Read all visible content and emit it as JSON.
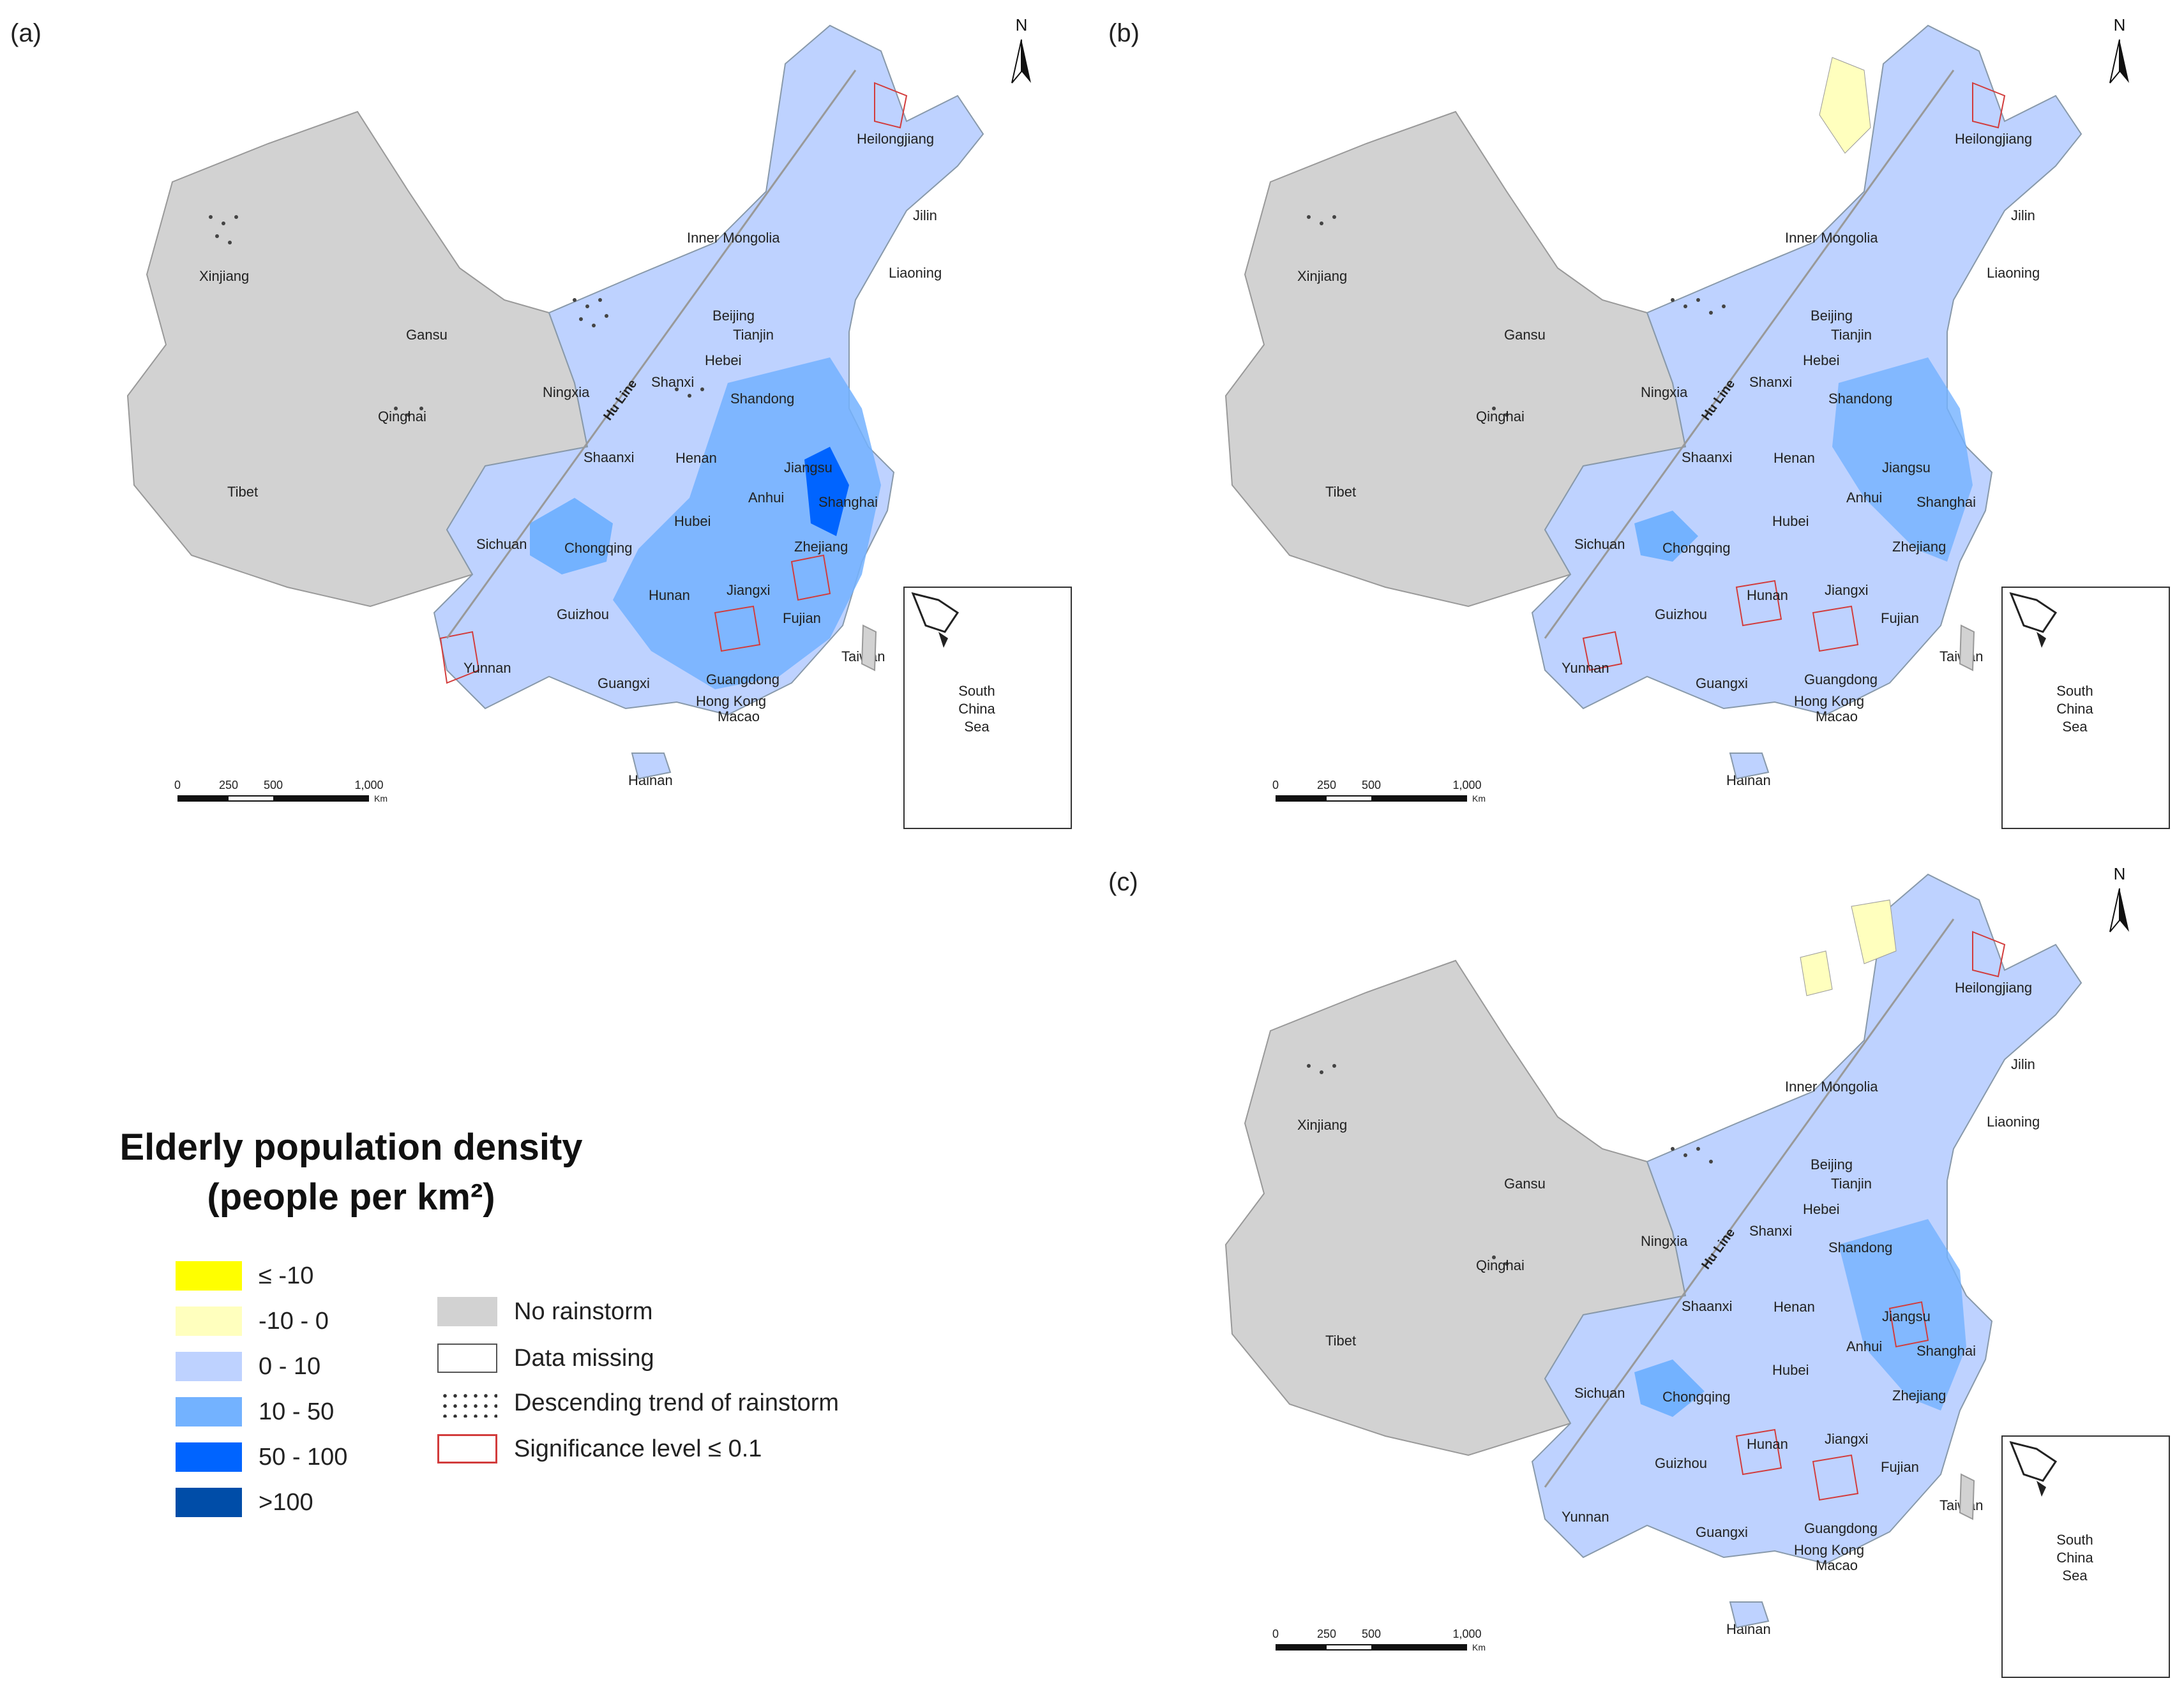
{
  "panels": [
    {
      "id": "a",
      "label": "(a)"
    },
    {
      "id": "b",
      "label": "(b)"
    },
    {
      "id": "c",
      "label": "(c)"
    }
  ],
  "map": {
    "north_label": "N",
    "hu_line_label": "Hu Line",
    "inset_labels": [
      "South",
      "China",
      "Sea"
    ],
    "scale_labels": [
      "0",
      "250",
      "500",
      "1,000"
    ],
    "scale_unit": "Km",
    "provinces": [
      "Heilongjiang",
      "Jilin",
      "Liaoning",
      "Inner Mongolia",
      "Xinjiang",
      "Beijing",
      "Tianjin",
      "Hebei",
      "Gansu",
      "Ningxia",
      "Shanxi",
      "Shandong",
      "Qinghai",
      "Shaanxi",
      "Henan",
      "Jiangsu",
      "Tibet",
      "Anhui",
      "Shanghai",
      "Hubei",
      "Sichuan",
      "Chongqing",
      "Zhejiang",
      "Hunan",
      "Jiangxi",
      "Guizhou",
      "Fujian",
      "Taiwan",
      "Yunnan",
      "Guangxi",
      "Guangdong",
      "Hong Kong",
      "Macao",
      "Hainan"
    ]
  },
  "legend": {
    "title_line1": "Elderly population density",
    "title_line2": "(people per km²)",
    "density_classes": [
      {
        "label": "≤ -10",
        "color": "#ffff00"
      },
      {
        "label": "-10 - 0",
        "color": "#ffffbe"
      },
      {
        "label": "0 - 10",
        "color": "#bed2ff"
      },
      {
        "label": "10 - 50",
        "color": "#73b2ff"
      },
      {
        "label": "50 - 100",
        "color": "#0064ff"
      },
      {
        "label": ">100",
        "color": "#004da8"
      }
    ],
    "other_classes": [
      {
        "label": "No rainstorm",
        "style": "fill",
        "color": "#d2d2d2"
      },
      {
        "label": "Data missing",
        "style": "outline",
        "color": "#555555"
      },
      {
        "label": "Descending trend of rainstorm",
        "style": "dots",
        "color": "#333333"
      },
      {
        "label": "Significance level  ≤  0.1",
        "style": "outline",
        "color": "#d23c3c"
      }
    ]
  }
}
